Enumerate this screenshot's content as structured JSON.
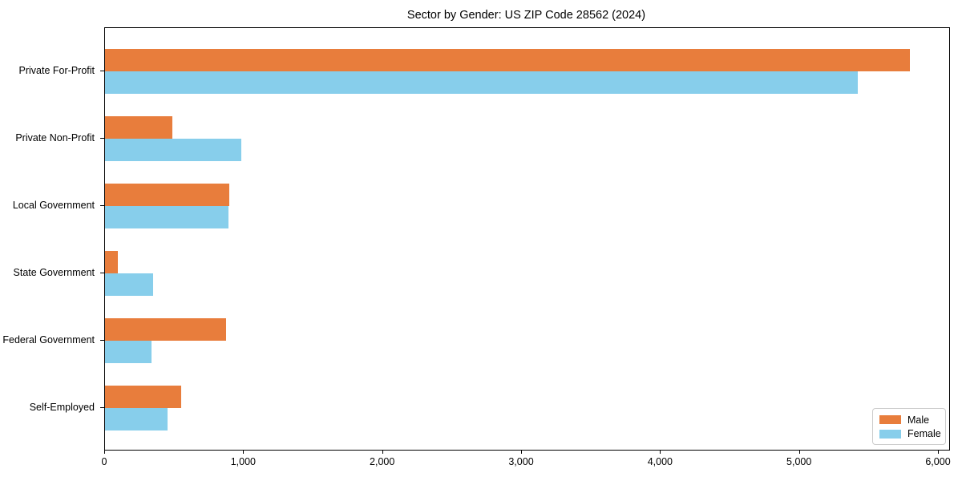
{
  "chart_data": {
    "type": "bar",
    "orientation": "horizontal",
    "title": "Sector by Gender: US ZIP Code 28562 (2024)",
    "categories": [
      "Private For-Profit",
      "Private Non-Profit",
      "Local Government",
      "State Government",
      "Federal Government",
      "Self-Employed"
    ],
    "series": [
      {
        "name": "Male",
        "color": "#e87d3c",
        "values": [
          5790,
          485,
          895,
          90,
          870,
          550
        ]
      },
      {
        "name": "Female",
        "color": "#87ceeb",
        "values": [
          5420,
          980,
          890,
          345,
          335,
          450
        ]
      }
    ],
    "xlabel": "",
    "ylabel": "",
    "xlim": [
      0,
      6075
    ],
    "x_ticks": [
      {
        "value": 0,
        "label": "0"
      },
      {
        "value": 1000,
        "label": "1,000"
      },
      {
        "value": 2000,
        "label": "2,000"
      },
      {
        "value": 3000,
        "label": "3,000"
      },
      {
        "value": 4000,
        "label": "4,000"
      },
      {
        "value": 5000,
        "label": "5,000"
      },
      {
        "value": 6000,
        "label": "6,000"
      }
    ],
    "grid": false,
    "legend_position": "lower right"
  },
  "colors": {
    "axis": "#000000",
    "legend_border": "#cccccc",
    "background": "#ffffff"
  }
}
